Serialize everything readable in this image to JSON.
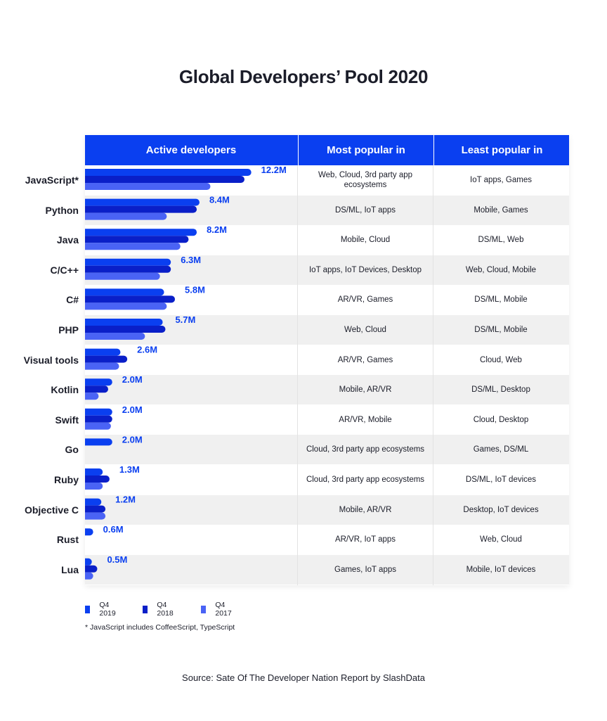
{
  "title": "Global Developers’ Pool 2020",
  "headers": {
    "active": "Active developers",
    "most": "Most popular in",
    "least": "Least popular in"
  },
  "colors": {
    "q4_2019": "#0a3ff0",
    "q4_2018": "#0a1fc8",
    "q4_2017": "#4a63f5",
    "label": "#0a3ff0"
  },
  "chart_data": {
    "type": "bar",
    "orientation": "horizontal",
    "title": "Active developers",
    "unit": "M",
    "categories": [
      "JavaScript*",
      "Python",
      "Java",
      "C/C++",
      "C#",
      "PHP",
      "Visual tools",
      "Kotlin",
      "Swift",
      "Go",
      "Ruby",
      "Objective C",
      "Rust",
      "Lua"
    ],
    "series": [
      {
        "name": "Q4 2019",
        "values": [
          12.2,
          8.4,
          8.2,
          6.3,
          5.8,
          5.7,
          2.6,
          2.0,
          2.0,
          2.0,
          1.3,
          1.2,
          0.6,
          0.5
        ]
      },
      {
        "name": "Q4 2018",
        "values": [
          11.7,
          8.2,
          7.6,
          6.3,
          6.6,
          5.9,
          3.1,
          1.7,
          2.0,
          null,
          1.8,
          1.5,
          null,
          0.9
        ]
      },
      {
        "name": "Q4 2017",
        "values": [
          9.2,
          6.0,
          7.0,
          5.5,
          6.0,
          4.4,
          2.5,
          1.0,
          1.9,
          null,
          1.3,
          1.5,
          null,
          0.6
        ]
      }
    ],
    "data_labels": [
      "12.2M",
      "8.4M",
      "8.2M",
      "6.3M",
      "5.8M",
      "5.7M",
      "2.6M",
      "2.0M",
      "2.0M",
      "2.0M",
      "1.3M",
      "1.2M",
      "0.6M",
      "0.5M"
    ],
    "xlim": [
      0,
      16
    ]
  },
  "rows": [
    {
      "lang": "JavaScript*",
      "most": "Web, Cloud, 3rd party app ecosystems",
      "least": "IoT apps, Games"
    },
    {
      "lang": "Python",
      "most": "DS/ML, IoT apps",
      "least": "Mobile, Games"
    },
    {
      "lang": "Java",
      "most": "Mobile, Cloud",
      "least": "DS/ML, Web"
    },
    {
      "lang": "C/C++",
      "most": "IoT apps, IoT Devices, Desktop",
      "least": "Web, Cloud, Mobile"
    },
    {
      "lang": "C#",
      "most": "AR/VR, Games",
      "least": "DS/ML, Mobile"
    },
    {
      "lang": "PHP",
      "most": "Web, Cloud",
      "least": "DS/ML, Mobile"
    },
    {
      "lang": "Visual tools",
      "most": "AR/VR, Games",
      "least": "Cloud, Web"
    },
    {
      "lang": "Kotlin",
      "most": "Mobile, AR/VR",
      "least": "DS/ML, Desktop"
    },
    {
      "lang": "Swift",
      "most": "AR/VR, Mobile",
      "least": "Cloud, Desktop"
    },
    {
      "lang": "Go",
      "most": "Cloud, 3rd party app ecosystems",
      "least": "Games, DS/ML"
    },
    {
      "lang": "Ruby",
      "most": "Cloud, 3rd party app ecosystems",
      "least": "DS/ML, IoT devices"
    },
    {
      "lang": "Objective C",
      "most": "Mobile, AR/VR",
      "least": "Desktop, IoT devices"
    },
    {
      "lang": "Rust",
      "most": "AR/VR, IoT apps",
      "least": "Web, Cloud"
    },
    {
      "lang": "Lua",
      "most": "Games, IoT apps",
      "least": "Mobile, IoT devices"
    }
  ],
  "legend": [
    "Q4 2019",
    "Q4 2018",
    "Q4 2017"
  ],
  "footnote": "* JavaScript includes CoffeeScript, TypeScript",
  "source": "Source: Sate Of The Developer Nation Report by SlashData"
}
